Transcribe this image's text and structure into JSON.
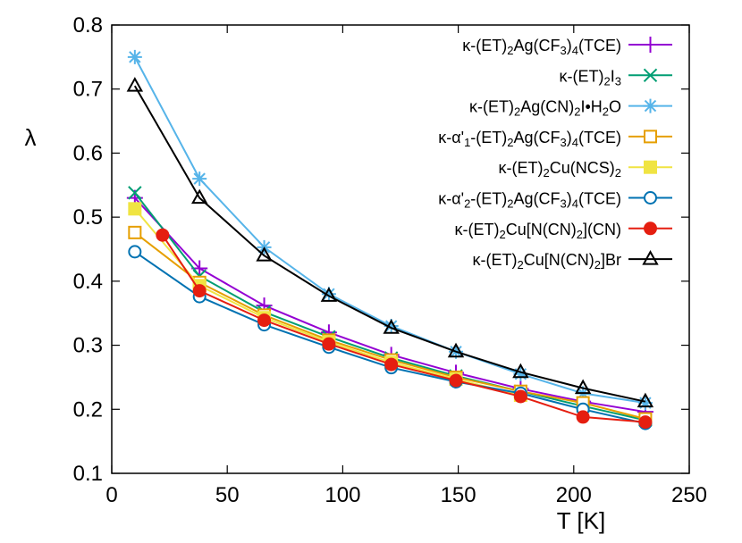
{
  "chart_data": {
    "type": "line",
    "title": "",
    "xlabel": "T [K]",
    "ylabel": "λ",
    "xlim": [
      0,
      250
    ],
    "ylim": [
      0.1,
      0.8
    ],
    "xticks": [
      "0",
      "50",
      "100",
      "150",
      "200",
      "250"
    ],
    "yticks": [
      "0.1",
      "0.2",
      "0.3",
      "0.4",
      "0.5",
      "0.6",
      "0.7",
      "0.8"
    ],
    "grid": false,
    "legend_position": "top-right",
    "series": [
      {
        "name": "κ-(ET)2Ag(CF3)4(TCE)",
        "legend": [
          {
            "t": "κ-(ET)"
          },
          {
            "t": "2",
            "s": "sub"
          },
          {
            "t": "Ag(CF"
          },
          {
            "t": "3",
            "s": "sub"
          },
          {
            "t": ")"
          },
          {
            "t": "4",
            "s": "sub"
          },
          {
            "t": "(TCE)"
          }
        ],
        "color": "#9400d3",
        "marker": "plus",
        "x": [
          10,
          38,
          66,
          94,
          121,
          149,
          177,
          204,
          231
        ],
        "y": [
          0.53,
          0.42,
          0.362,
          0.32,
          0.285,
          0.257,
          0.232,
          0.212,
          0.196
        ]
      },
      {
        "name": "κ-(ET)2I3",
        "legend": [
          {
            "t": "κ-(ET)"
          },
          {
            "t": "2",
            "s": "sub"
          },
          {
            "t": "I"
          },
          {
            "t": "3",
            "s": "sub"
          }
        ],
        "color": "#009e73",
        "marker": "cross",
        "x": [
          10,
          38,
          66,
          94,
          121,
          149,
          177,
          204,
          231
        ],
        "y": [
          0.538,
          0.408,
          0.352,
          0.313,
          0.28,
          0.252,
          0.228,
          0.205,
          0.183
        ]
      },
      {
        "name": "κ-(ET)2Ag(CN)2I•H2O",
        "legend": [
          {
            "t": "κ-(ET)"
          },
          {
            "t": "2",
            "s": "sub"
          },
          {
            "t": "Ag(CN)"
          },
          {
            "t": "2",
            "s": "sub"
          },
          {
            "t": "I•H"
          },
          {
            "t": "2",
            "s": "sub"
          },
          {
            "t": "O"
          }
        ],
        "color": "#56b4e9",
        "marker": "star",
        "x": [
          10,
          38,
          66,
          94,
          121,
          149,
          177,
          204,
          231
        ],
        "y": [
          0.75,
          0.56,
          0.453,
          0.38,
          0.33,
          0.29,
          0.255,
          0.225,
          0.21
        ]
      },
      {
        "name": "κ-α'1-(ET)2Ag(CF3)4(TCE)",
        "legend": [
          {
            "t": "κ-α'"
          },
          {
            "t": "1",
            "s": "sub"
          },
          {
            "t": "-(ET)"
          },
          {
            "t": "2",
            "s": "sub"
          },
          {
            "t": "Ag(CF"
          },
          {
            "t": "3",
            "s": "sub"
          },
          {
            "t": ")"
          },
          {
            "t": "4",
            "s": "sub"
          },
          {
            "t": "(TCE)"
          }
        ],
        "color": "#e69f00",
        "marker": "square-open",
        "x": [
          10,
          38,
          66,
          94,
          121,
          149,
          177,
          204,
          231
        ],
        "y": [
          0.476,
          0.398,
          0.347,
          0.308,
          0.277,
          0.25,
          0.228,
          0.21,
          0.185
        ]
      },
      {
        "name": "κ-(ET)2Cu(NCS)2",
        "legend": [
          {
            "t": "κ-(ET)"
          },
          {
            "t": "2",
            "s": "sub"
          },
          {
            "t": "Cu(NCS)"
          },
          {
            "t": "2",
            "s": "sub"
          }
        ],
        "color": "#f0e442",
        "marker": "square-filled",
        "x": [
          10,
          38,
          66,
          94,
          121,
          149,
          177
        ],
        "y": [
          0.513,
          0.393,
          0.343,
          0.305,
          0.273,
          0.247,
          0.222
        ]
      },
      {
        "name": "κ-α'2-(ET)2Ag(CF3)4(TCE)",
        "legend": [
          {
            "t": "κ-α'"
          },
          {
            "t": "2",
            "s": "sub"
          },
          {
            "t": "-(ET)"
          },
          {
            "t": "2",
            "s": "sub"
          },
          {
            "t": "Ag(CF"
          },
          {
            "t": "3",
            "s": "sub"
          },
          {
            "t": ")"
          },
          {
            "t": "4",
            "s": "sub"
          },
          {
            "t": "(TCE)"
          }
        ],
        "color": "#0072b2",
        "marker": "circle-open",
        "x": [
          10,
          38,
          66,
          94,
          121,
          149,
          177,
          204,
          231
        ],
        "y": [
          0.446,
          0.376,
          0.332,
          0.297,
          0.265,
          0.243,
          0.225,
          0.2,
          0.178
        ]
      },
      {
        "name": "κ-(ET)2Cu[N(CN)2](CN)",
        "legend": [
          {
            "t": "κ-(ET)"
          },
          {
            "t": "2",
            "s": "sub"
          },
          {
            "t": "Cu[N(CN)"
          },
          {
            "t": "2",
            "s": "sub"
          },
          {
            "t": "](CN)"
          }
        ],
        "color": "#e51e10",
        "marker": "circle-filled",
        "x": [
          22,
          38,
          66,
          94,
          121,
          149,
          177,
          204,
          231
        ],
        "y": [
          0.472,
          0.385,
          0.339,
          0.302,
          0.27,
          0.245,
          0.22,
          0.188,
          0.18
        ]
      },
      {
        "name": "κ-(ET)2Cu[N(CN)2]Br",
        "legend": [
          {
            "t": "κ-(ET)"
          },
          {
            "t": "2",
            "s": "sub"
          },
          {
            "t": "Cu[N(CN)"
          },
          {
            "t": "2",
            "s": "sub"
          },
          {
            "t": "]Br"
          }
        ],
        "color": "#000000",
        "marker": "triangle-open",
        "x": [
          10,
          38,
          66,
          94,
          121,
          149,
          177,
          204,
          231
        ],
        "y": [
          0.705,
          0.53,
          0.44,
          0.377,
          0.327,
          0.29,
          0.258,
          0.233,
          0.212
        ]
      }
    ]
  }
}
